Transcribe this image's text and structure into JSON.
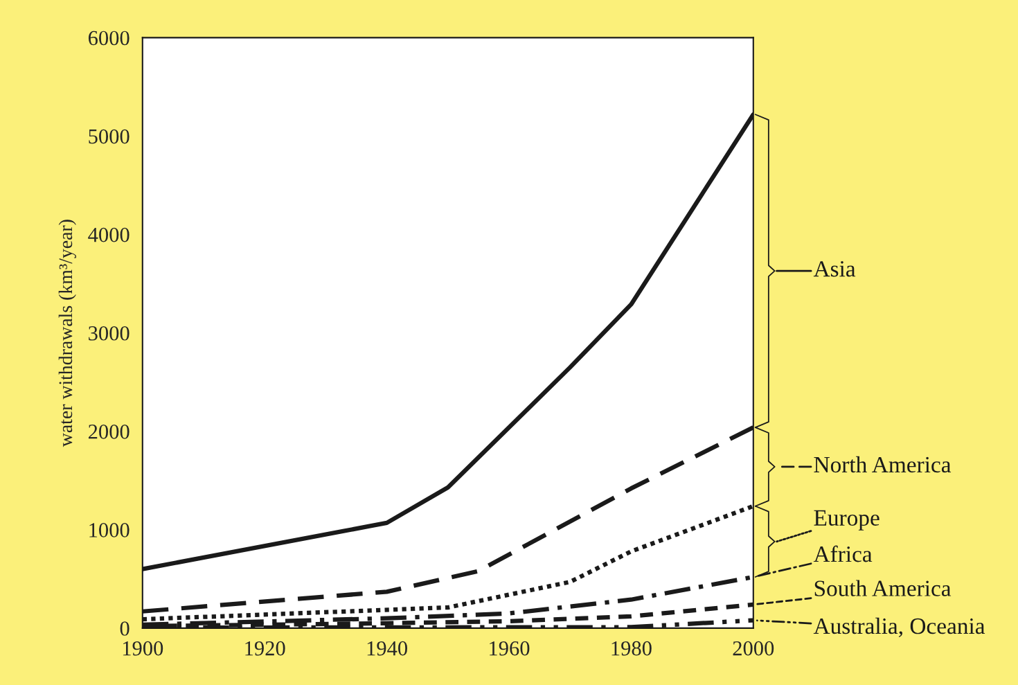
{
  "chart_data": {
    "type": "line",
    "ylabel": "water withdrawals (km³/year)",
    "xlim": [
      1900,
      2000
    ],
    "xticks": [
      1900,
      1920,
      1940,
      1960,
      1980,
      2000
    ],
    "ylim": [
      0,
      6000
    ],
    "yticks": [
      0,
      1000,
      2000,
      3000,
      4000,
      5000,
      6000
    ],
    "grid": false,
    "legend": "right",
    "marker": "none",
    "series": [
      {
        "name": "Asia",
        "color": "#1a1a1a",
        "line_style": "solid",
        "x": [
          1900,
          1940,
          1950,
          1970,
          1980,
          2000
        ],
        "values": [
          600,
          1070,
          1430,
          2650,
          3290,
          5220
        ]
      },
      {
        "name": "North America",
        "color": "#1a1a1a",
        "line_style": "dashed",
        "x": [
          1900,
          1940,
          1955,
          1980,
          2000
        ],
        "values": [
          170,
          370,
          580,
          1420,
          2040
        ]
      },
      {
        "name": "Europe",
        "color": "#1a1a1a",
        "line_style": "dotted",
        "x": [
          1900,
          1950,
          1970,
          1980,
          2000
        ],
        "values": [
          90,
          210,
          470,
          780,
          1240
        ]
      },
      {
        "name": "Africa",
        "color": "#1a1a1a",
        "line_style": "dashdot",
        "x": [
          1900,
          1940,
          1960,
          1980,
          2000
        ],
        "values": [
          35,
          100,
          150,
          290,
          520
        ]
      },
      {
        "name": "South America",
        "color": "#1a1a1a",
        "line_style": "dashed",
        "x": [
          1900,
          1940,
          1960,
          1980,
          2000
        ],
        "values": [
          20,
          50,
          70,
          120,
          240
        ]
      },
      {
        "name": "Australia, Oceania",
        "color": "#1a1a1a",
        "line_style": "dashdotdot",
        "x": [
          1900,
          1980,
          2000
        ],
        "values": [
          5,
          10,
          80
        ]
      }
    ]
  }
}
